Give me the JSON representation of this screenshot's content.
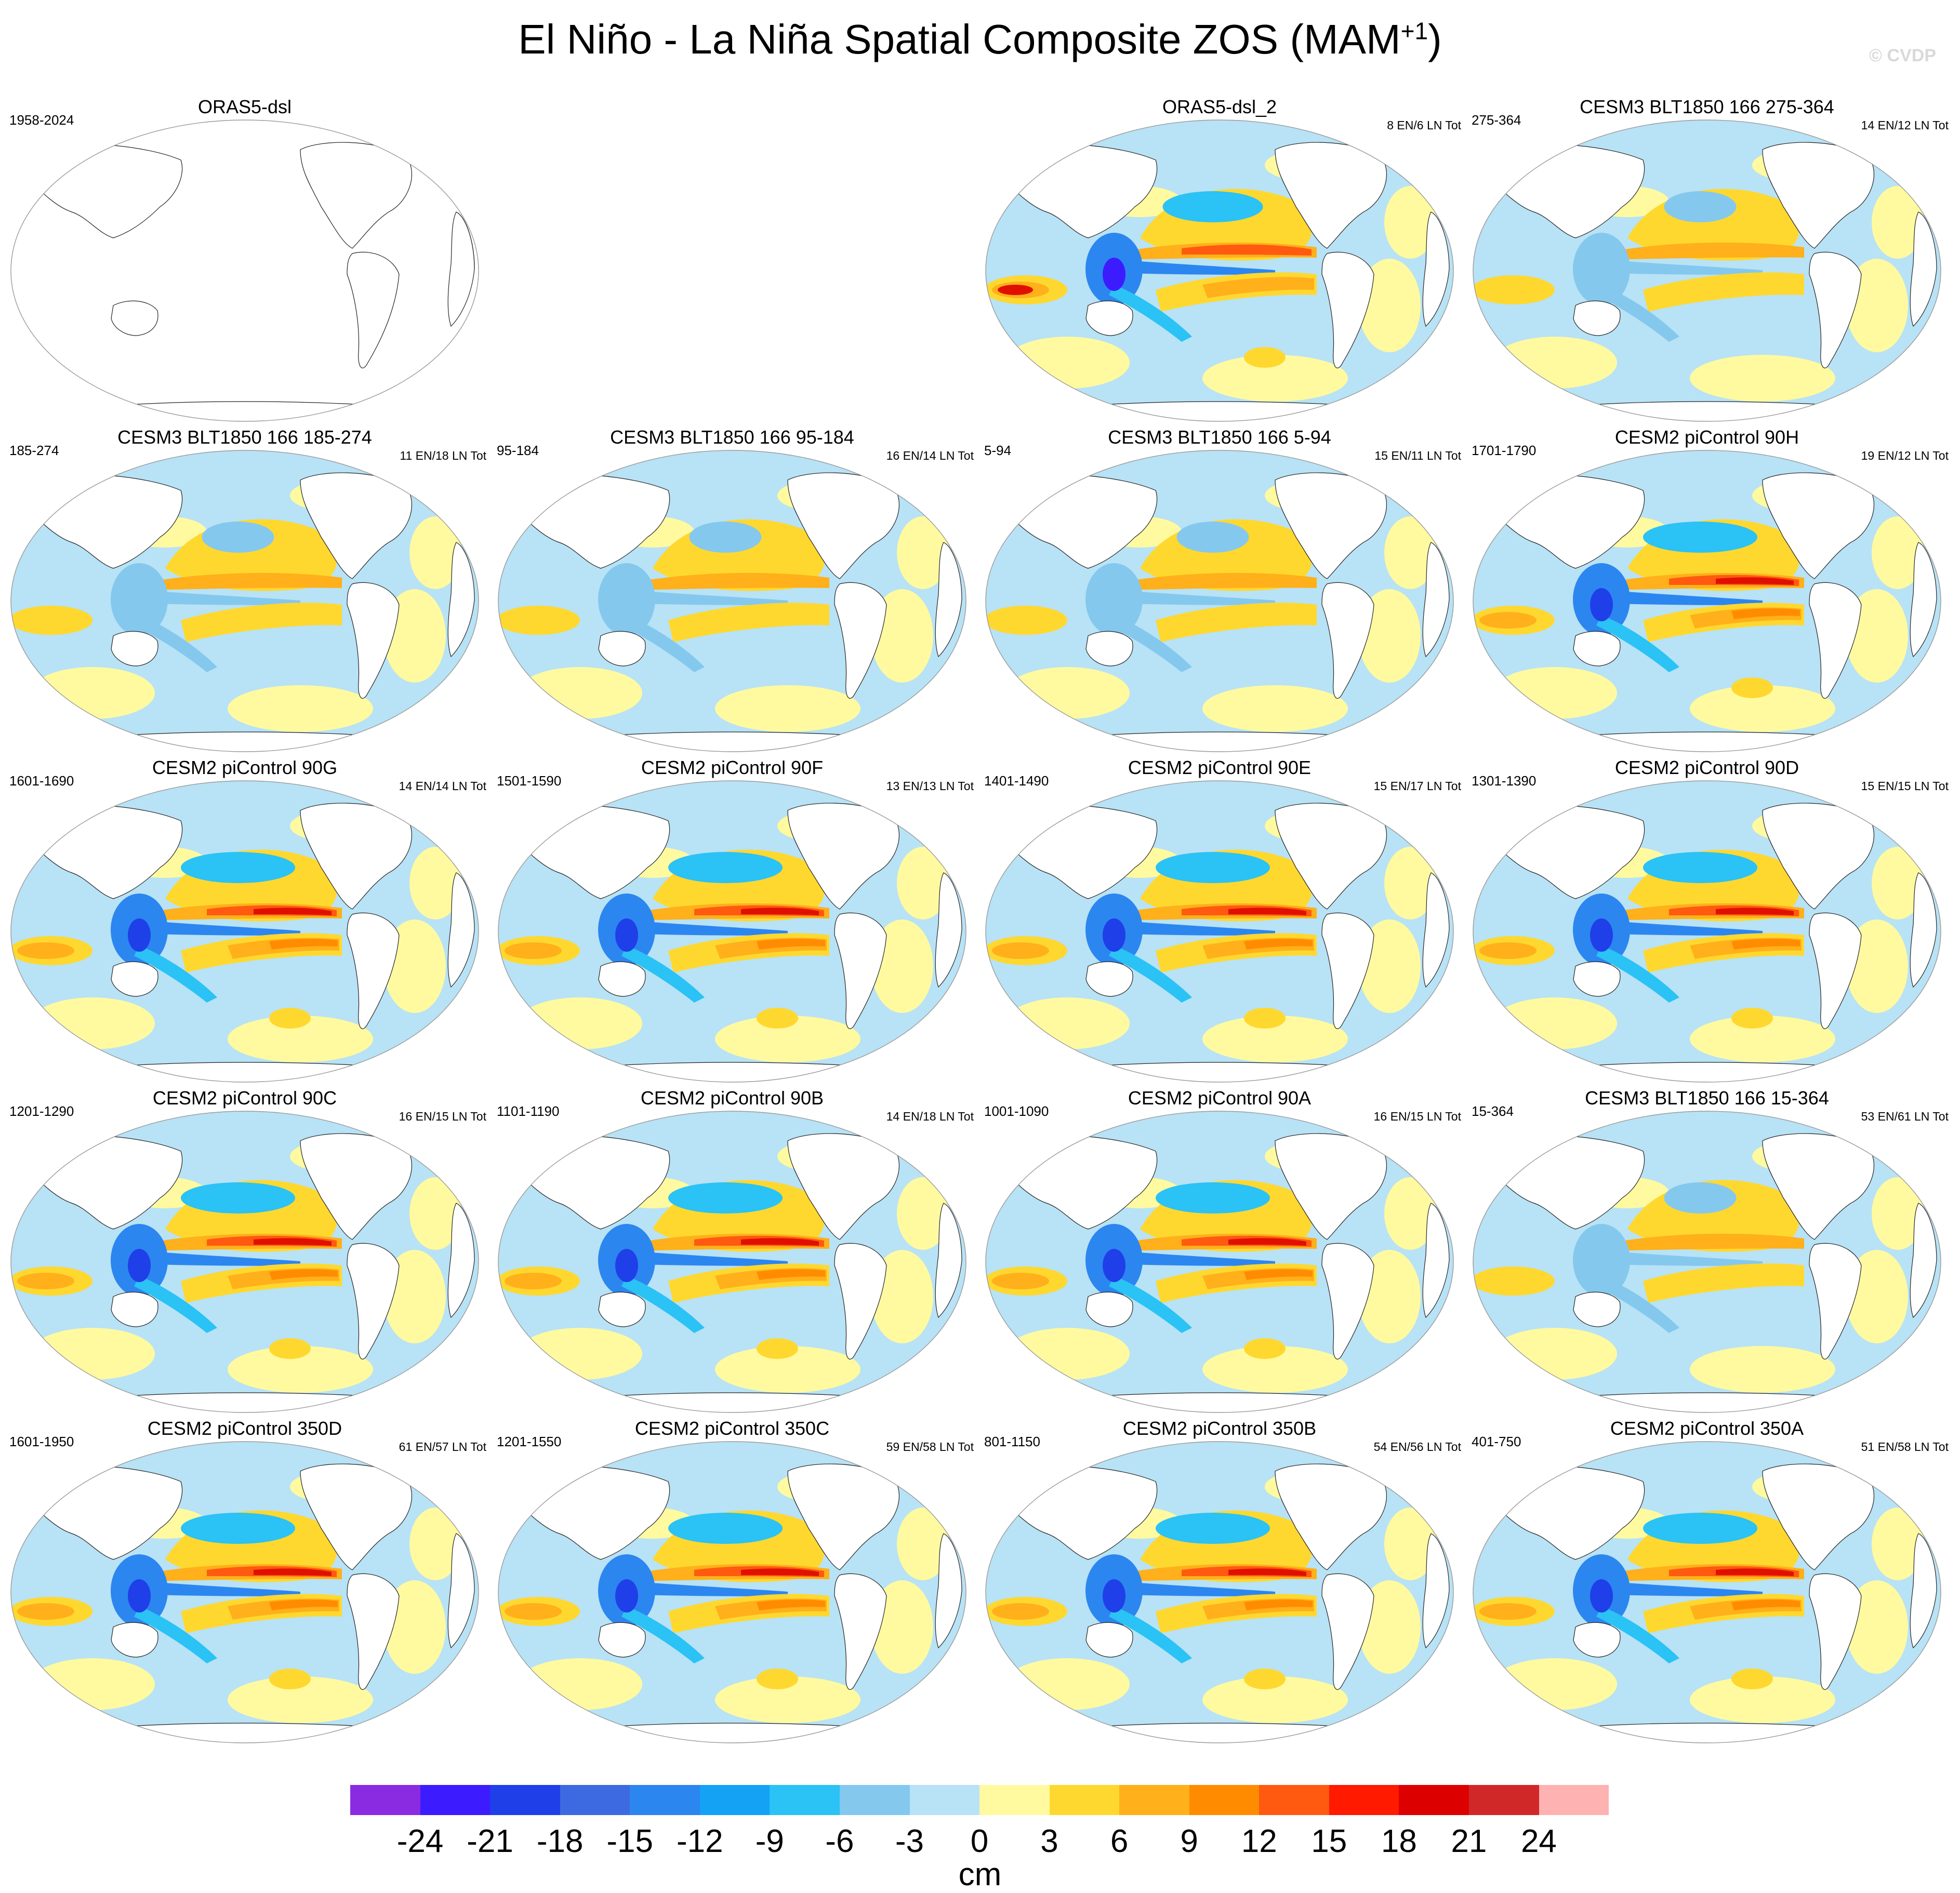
{
  "title": {
    "main": "El Niño - La Niña Spatial Composite ZOS (MAM",
    "sup": "+1",
    "close": ")"
  },
  "watermark": "© CVDP",
  "colorbar": {
    "unit": "cm",
    "labels": [
      "-24",
      "-21",
      "-18",
      "-15",
      "-12",
      "-9",
      "-6",
      "-3",
      "0",
      "3",
      "6",
      "9",
      "12",
      "15",
      "18",
      "21",
      "24"
    ],
    "colors": [
      "#8a2be2",
      "#3c1cff",
      "#1f3fe8",
      "#3d6ae0",
      "#2c86f0",
      "#14a2f5",
      "#2bc2f5",
      "#84c8ee",
      "#b8e2f5",
      "#fffaa0",
      "#ffd82f",
      "#ffb01a",
      "#ff8c00",
      "#ff5a10",
      "#ff1a00",
      "#dd0000",
      "#d02828",
      "#ffb2b2"
    ]
  },
  "panels": [
    {
      "title": "ORAS5-dsl",
      "years": "1958-2024",
      "counts": "",
      "intensity": 0
    },
    null,
    {
      "title": "ORAS5-dsl_2",
      "years": "",
      "counts": "8 EN/6 LN Tot",
      "intensity": 2
    },
    {
      "title": "CESM3 BLT1850 166 275-364",
      "years": "275-364",
      "counts": "14 EN/12 LN Tot",
      "intensity": 1
    },
    {
      "title": "CESM3 BLT1850 166 185-274",
      "years": "185-274",
      "counts": "11 EN/18 LN Tot",
      "intensity": 1
    },
    {
      "title": "CESM3 BLT1850 166 95-184",
      "years": "95-184",
      "counts": "16 EN/14 LN Tot",
      "intensity": 1
    },
    {
      "title": "CESM3 BLT1850 166 5-94",
      "years": "5-94",
      "counts": "15 EN/11 LN Tot",
      "intensity": 1
    },
    {
      "title": "CESM2 piControl 90H",
      "years": "1701-1790",
      "counts": "19 EN/12 LN Tot",
      "intensity": 3
    },
    {
      "title": "CESM2 piControl 90G",
      "years": "1601-1690",
      "counts": "14 EN/14 LN Tot",
      "intensity": 3
    },
    {
      "title": "CESM2 piControl 90F",
      "years": "1501-1590",
      "counts": "13 EN/13 LN Tot",
      "intensity": 3
    },
    {
      "title": "CESM2 piControl 90E",
      "years": "1401-1490",
      "counts": "15 EN/17 LN Tot",
      "intensity": 3
    },
    {
      "title": "CESM2 piControl 90D",
      "years": "1301-1390",
      "counts": "15 EN/15 LN Tot",
      "intensity": 3
    },
    {
      "title": "CESM2 piControl 90C",
      "years": "1201-1290",
      "counts": "16 EN/15 LN Tot",
      "intensity": 3
    },
    {
      "title": "CESM2 piControl 90B",
      "years": "1101-1190",
      "counts": "14 EN/18 LN Tot",
      "intensity": 3
    },
    {
      "title": "CESM2 piControl 90A",
      "years": "1001-1090",
      "counts": "16 EN/15 LN Tot",
      "intensity": 3
    },
    {
      "title": "CESM3 BLT1850 166 15-364",
      "years": "15-364",
      "counts": "53 EN/61 LN Tot",
      "intensity": 1
    },
    {
      "title": "CESM2 piControl 350D",
      "years": "1601-1950",
      "counts": "61 EN/57 LN Tot",
      "intensity": 3
    },
    {
      "title": "CESM2 piControl 350C",
      "years": "1201-1550",
      "counts": "59 EN/58 LN Tot",
      "intensity": 3
    },
    {
      "title": "CESM2 piControl 350B",
      "years": "801-1150",
      "counts": "54 EN/56 LN Tot",
      "intensity": 3
    },
    {
      "title": "CESM2 piControl 350A",
      "years": "401-750",
      "counts": "51 EN/58 LN Tot",
      "intensity": 3
    }
  ]
}
